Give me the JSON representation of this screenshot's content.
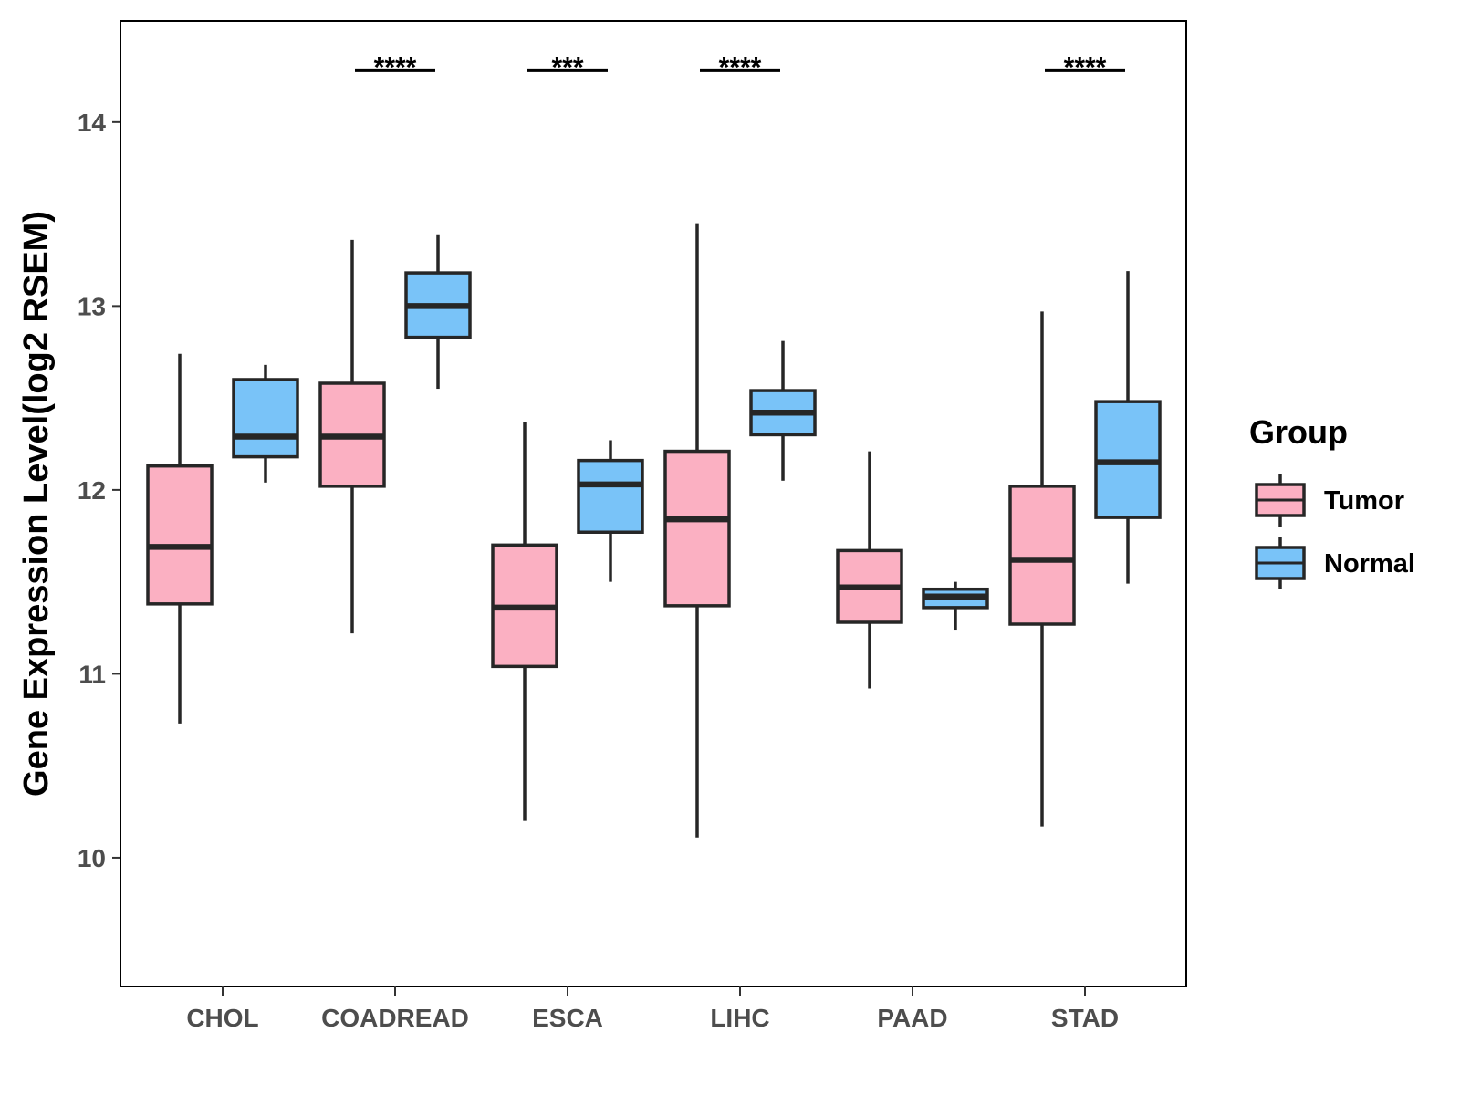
{
  "chart_data": {
    "type": "box",
    "title": "",
    "xlabel": "",
    "ylabel": "Gene Expression Level(log2 RSEM)",
    "ylim": [
      9.3,
      14.55
    ],
    "yticks": [
      10,
      11,
      12,
      13,
      14
    ],
    "categories": [
      "CHOL",
      "COADREAD",
      "ESCA",
      "LIHC",
      "PAAD",
      "STAD"
    ],
    "legend": {
      "title": "Group",
      "position": "right",
      "entries": [
        {
          "name": "Tumor",
          "color": "#fbb0c2"
        },
        {
          "name": "Normal",
          "color": "#79c3f8"
        }
      ]
    },
    "series": [
      {
        "name": "Tumor",
        "color": "#fbb0c2",
        "boxes": [
          {
            "category": "CHOL",
            "whisker_low": 10.73,
            "q1": 11.38,
            "median": 11.69,
            "q3": 12.13,
            "whisker_high": 12.74
          },
          {
            "category": "COADREAD",
            "whisker_low": 11.22,
            "q1": 12.02,
            "median": 12.29,
            "q3": 12.58,
            "whisker_high": 13.36
          },
          {
            "category": "ESCA",
            "whisker_low": 10.2,
            "q1": 11.04,
            "median": 11.36,
            "q3": 11.7,
            "whisker_high": 12.37
          },
          {
            "category": "LIHC",
            "whisker_low": 10.11,
            "q1": 11.37,
            "median": 11.84,
            "q3": 12.21,
            "whisker_high": 13.45
          },
          {
            "category": "PAAD",
            "whisker_low": 10.92,
            "q1": 11.28,
            "median": 11.47,
            "q3": 11.67,
            "whisker_high": 12.21
          },
          {
            "category": "STAD",
            "whisker_low": 10.17,
            "q1": 11.27,
            "median": 11.62,
            "q3": 12.02,
            "whisker_high": 12.97
          }
        ]
      },
      {
        "name": "Normal",
        "color": "#79c3f8",
        "boxes": [
          {
            "category": "CHOL",
            "whisker_low": 12.04,
            "q1": 12.18,
            "median": 12.29,
            "q3": 12.6,
            "whisker_high": 12.68
          },
          {
            "category": "COADREAD",
            "whisker_low": 12.55,
            "q1": 12.83,
            "median": 13.0,
            "q3": 13.18,
            "whisker_high": 13.39
          },
          {
            "category": "ESCA",
            "whisker_low": 11.5,
            "q1": 11.77,
            "median": 12.03,
            "q3": 12.16,
            "whisker_high": 12.27
          },
          {
            "category": "LIHC",
            "whisker_low": 12.05,
            "q1": 12.3,
            "median": 12.42,
            "q3": 12.54,
            "whisker_high": 12.81
          },
          {
            "category": "PAAD",
            "whisker_low": 11.24,
            "q1": 11.36,
            "median": 11.42,
            "q3": 11.46,
            "whisker_high": 11.5
          },
          {
            "category": "STAD",
            "whisker_low": 11.49,
            "q1": 11.85,
            "median": 12.15,
            "q3": 12.48,
            "whisker_high": 13.19
          }
        ]
      }
    ],
    "significance": [
      {
        "category": "COADREAD",
        "label": "****",
        "y": 14.28
      },
      {
        "category": "ESCA",
        "label": "***",
        "y": 14.28
      },
      {
        "category": "LIHC",
        "label": "****",
        "y": 14.28
      },
      {
        "category": "STAD",
        "label": "****",
        "y": 14.28
      }
    ]
  }
}
